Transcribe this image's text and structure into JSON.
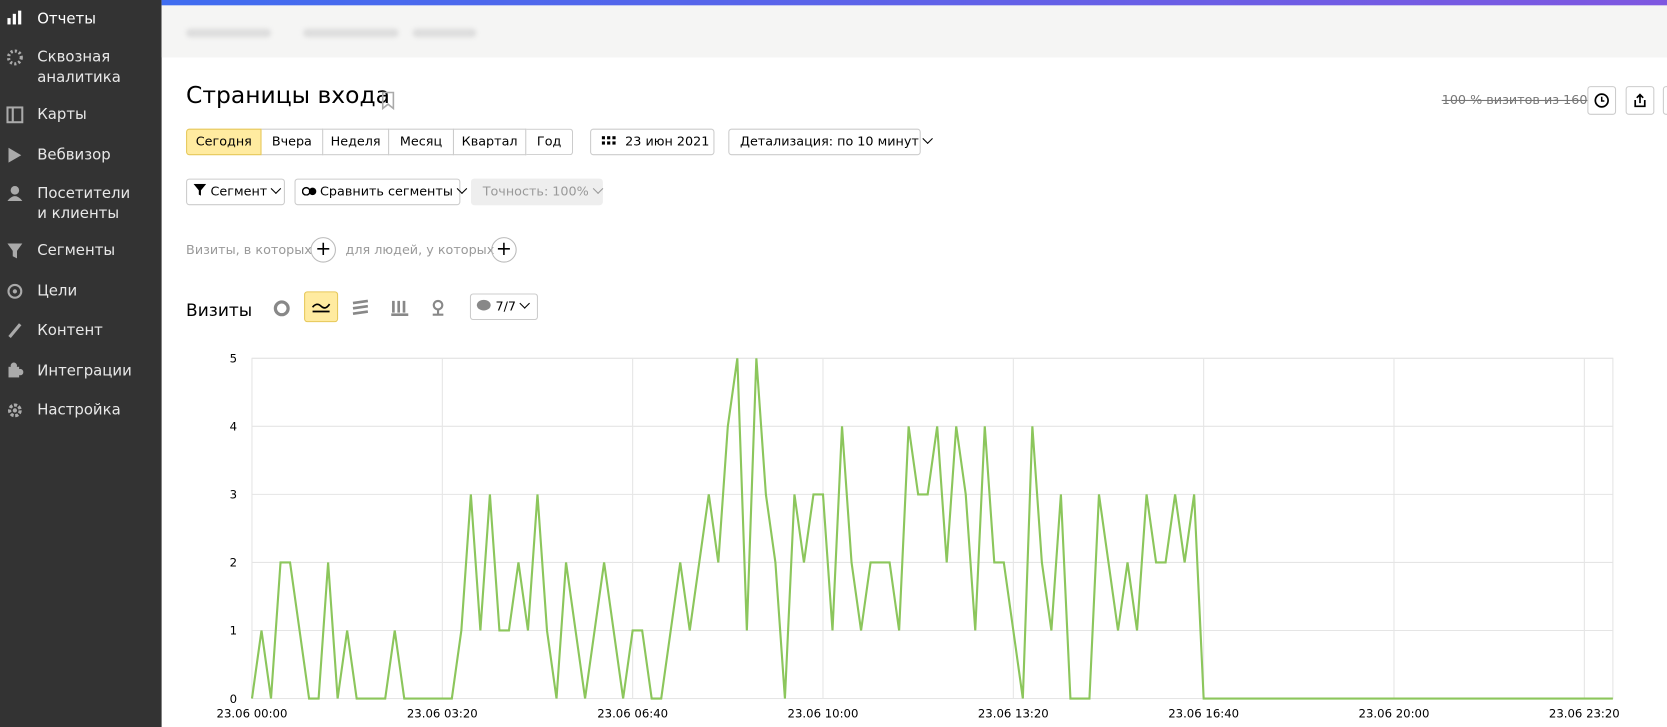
{
  "sidebar": {
    "items": [
      "Отчеты",
      "Сквозная аналитика",
      "Карты",
      "Вебвизор",
      "Посетители и клиенты",
      "Сегменты",
      "Цели",
      "Контент",
      "Интеграции",
      "Настройка"
    ]
  },
  "page": {
    "title": "Страницы входа",
    "sampling": "100 % визитов из 160"
  },
  "toolbar": {
    "periods": [
      "Сегодня",
      "Вчера",
      "Неделя",
      "Месяц",
      "Квартал",
      "Год"
    ],
    "date": "23 июн 2021",
    "detail": "Детализация: по 10 минут",
    "segment": "Сегмент",
    "compare": "Сравнить сегменты",
    "accuracy": "Точность: 100%"
  },
  "filters": {
    "visits": "Визиты, в которых",
    "people": "для людей, у которых"
  },
  "chart_header": {
    "title": "Визиты",
    "counter": "7/7"
  },
  "chart_data": {
    "type": "line",
    "color": "#8cc65c",
    "grid": true,
    "categories": [
      "23.06 00:00",
      null,
      null,
      null,
      null,
      null,
      null,
      null,
      null,
      null,
      null,
      null,
      null,
      null,
      null,
      null,
      null,
      null,
      null,
      null,
      "23.06 03:20",
      null,
      null,
      null,
      null,
      null,
      null,
      null,
      null,
      null,
      null,
      null,
      null,
      null,
      null,
      null,
      null,
      null,
      null,
      null,
      "23.06 06:40",
      null,
      null,
      null,
      null,
      null,
      null,
      null,
      null,
      null,
      null,
      null,
      null,
      null,
      null,
      null,
      null,
      null,
      null,
      null,
      "23.06 10:00",
      null,
      null,
      null,
      null,
      null,
      null,
      null,
      null,
      null,
      null,
      null,
      null,
      null,
      null,
      null,
      null,
      null,
      null,
      null,
      "23.06 13:20",
      null,
      null,
      null,
      null,
      null,
      null,
      null,
      null,
      null,
      null,
      null,
      null,
      null,
      null,
      null,
      null,
      null,
      null,
      null,
      "23.06 16:40",
      null,
      null,
      null,
      null,
      null,
      null,
      null,
      null,
      null,
      null,
      null,
      null,
      null,
      null,
      null,
      null,
      null,
      null,
      null,
      "23.06 20:00",
      null,
      null,
      null,
      null,
      null,
      null,
      null,
      null,
      null,
      null,
      null,
      null,
      null,
      null,
      null,
      null,
      null,
      null,
      null,
      "23.06 23:20",
      null,
      null,
      null
    ],
    "values": [
      0,
      1,
      0,
      2,
      2,
      1,
      0,
      0,
      2,
      0,
      1,
      0,
      0,
      0,
      0,
      1,
      0,
      0,
      0,
      0,
      0,
      0,
      1,
      3,
      1,
      3,
      1,
      1,
      2,
      1,
      3,
      1,
      0,
      2,
      1,
      0,
      1,
      2,
      1,
      0,
      1,
      1,
      0,
      0,
      1,
      2,
      1,
      2,
      3,
      2,
      4,
      5,
      1,
      5,
      3,
      2,
      0,
      3,
      2,
      3,
      3,
      1,
      4,
      2,
      1,
      2,
      2,
      2,
      1,
      4,
      3,
      3,
      4,
      2,
      4,
      3,
      1,
      4,
      2,
      2,
      1,
      0,
      4,
      2,
      1,
      3,
      0,
      0,
      0,
      3,
      2,
      1,
      2,
      1,
      3,
      2,
      2,
      3,
      2,
      3,
      0,
      0,
      0,
      0,
      0,
      0,
      0,
      0,
      0,
      0,
      0,
      0,
      0,
      0,
      0,
      0,
      0,
      0,
      0,
      0,
      0,
      0,
      0,
      0,
      0,
      0,
      0,
      0,
      0,
      0,
      0,
      0,
      0,
      0,
      0,
      0,
      0,
      0,
      0,
      0,
      0,
      0,
      0,
      0
    ],
    "ylim": [
      0,
      5
    ],
    "yticks": [
      0,
      1,
      2,
      3,
      4,
      5
    ]
  }
}
